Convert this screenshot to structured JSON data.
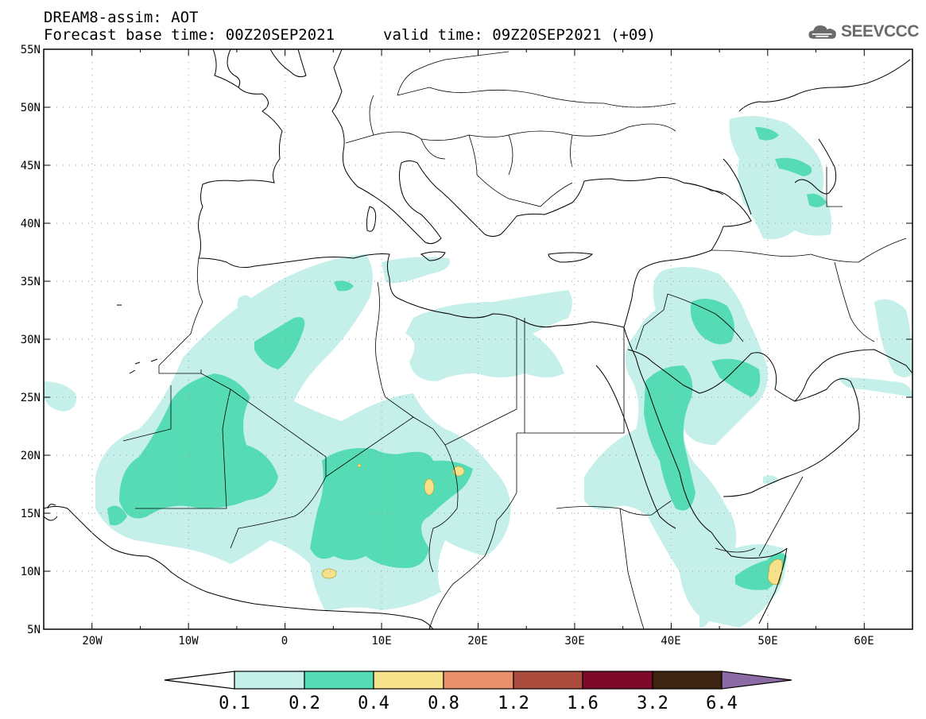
{
  "header": {
    "title": "DREAM8-assim: AOT",
    "base_time": "Forecast base time: 00Z20SEP2021",
    "valid_time": "valid time: 09Z20SEP2021 (+09)"
  },
  "logo": {
    "text": "SEEVCCC",
    "icon": "cloud-icon"
  },
  "map": {
    "projection": "lat-lon",
    "lon_range": [
      -25,
      65
    ],
    "lat_range": [
      5,
      55
    ],
    "lat_ticks": [
      "55N",
      "50N",
      "45N",
      "40N",
      "35N",
      "30N",
      "25N",
      "20N",
      "15N",
      "10N",
      "5N"
    ],
    "lon_ticks": [
      "20W",
      "10W",
      "0",
      "10E",
      "20E",
      "30E",
      "40E",
      "50E",
      "60E"
    ],
    "grid": "dotted"
  },
  "colorbar": {
    "labels": [
      "0.1",
      "0.2",
      "0.4",
      "0.8",
      "1.2",
      "1.6",
      "3.2",
      "6.4"
    ],
    "colors": [
      "#ffffff",
      "#c5f0ea",
      "#55dcb5",
      "#f5e28a",
      "#ea906a",
      "#ab4b3e",
      "#7d0a2b",
      "#3d2413",
      "#8c6aa5"
    ]
  }
}
